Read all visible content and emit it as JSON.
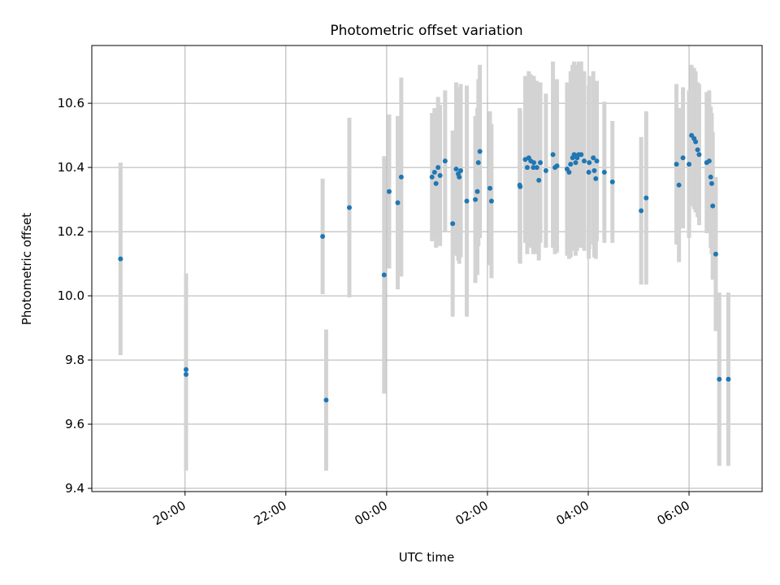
{
  "chart_data": {
    "type": "scatter",
    "title": "Photometric offset variation",
    "xlabel": "UTC time",
    "ylabel": "Photometric offset",
    "x_unit": "hours",
    "xlim": [
      -5.85,
      7.45
    ],
    "ylim": [
      9.39,
      10.78
    ],
    "xticks": [
      {
        "value": -4,
        "label": "20:00"
      },
      {
        "value": -2,
        "label": "22:00"
      },
      {
        "value": 0,
        "label": "00:00"
      },
      {
        "value": 2,
        "label": "02:00"
      },
      {
        "value": 4,
        "label": "04:00"
      },
      {
        "value": 6,
        "label": "06:00"
      }
    ],
    "yticks": [
      9.4,
      9.6,
      9.8,
      10.0,
      10.2,
      10.4,
      10.6
    ],
    "grid": true,
    "marker_color": "#1f77b4",
    "errorbar_color": "#d3d3d3",
    "series": [
      {
        "x_hours_utc": [
          -5.28,
          -3.98,
          -3.98,
          -1.27,
          -1.2,
          -0.74,
          -0.05,
          0.05,
          0.22,
          0.29,
          0.9,
          0.95,
          0.98,
          1.02,
          1.06,
          1.16,
          1.31,
          1.38,
          1.42,
          1.44,
          1.47,
          1.59,
          1.76,
          1.8,
          1.82,
          1.85,
          2.05,
          2.08,
          2.64,
          2.65,
          2.75,
          2.79,
          2.82,
          2.86,
          2.91,
          2.92,
          2.98,
          3.02,
          3.05,
          3.16,
          3.3,
          3.34,
          3.38,
          3.58,
          3.62,
          3.65,
          3.69,
          3.72,
          3.75,
          3.78,
          3.81,
          3.86,
          3.92,
          4.01,
          4.02,
          4.1,
          4.12,
          4.15,
          4.17,
          4.32,
          4.48,
          5.05,
          5.15,
          5.75,
          5.8,
          5.88,
          6.0,
          6.05,
          6.1,
          6.13,
          6.17,
          6.2,
          6.35,
          6.4,
          6.43,
          6.45,
          6.47,
          6.53,
          6.6,
          6.78
        ],
        "y": [
          10.115,
          9.77,
          9.755,
          10.185,
          9.675,
          10.275,
          10.065,
          10.325,
          10.29,
          10.37,
          10.37,
          10.385,
          10.35,
          10.4,
          10.375,
          10.42,
          10.225,
          10.395,
          10.38,
          10.37,
          10.39,
          10.295,
          10.3,
          10.325,
          10.415,
          10.45,
          10.335,
          10.295,
          10.345,
          10.34,
          10.425,
          10.4,
          10.43,
          10.42,
          10.4,
          10.415,
          10.4,
          10.36,
          10.415,
          10.39,
          10.44,
          10.4,
          10.405,
          10.395,
          10.385,
          10.41,
          10.43,
          10.44,
          10.415,
          10.43,
          10.44,
          10.44,
          10.42,
          10.385,
          10.415,
          10.43,
          10.39,
          10.365,
          10.42,
          10.385,
          10.355,
          10.265,
          10.305,
          10.41,
          10.345,
          10.43,
          10.41,
          10.5,
          10.49,
          10.48,
          10.455,
          10.44,
          10.415,
          10.42,
          10.37,
          10.35,
          10.28,
          10.13,
          9.74,
          9.74
        ],
        "err": [
          0.3,
          0.3,
          0.3,
          0.18,
          0.22,
          0.28,
          0.37,
          0.24,
          0.27,
          0.31,
          0.2,
          0.2,
          0.2,
          0.22,
          0.22,
          0.22,
          0.29,
          0.27,
          0.27,
          0.27,
          0.27,
          0.36,
          0.26,
          0.26,
          0.26,
          0.27,
          0.24,
          0.24,
          0.24,
          0.24,
          0.26,
          0.27,
          0.27,
          0.27,
          0.27,
          0.27,
          0.27,
          0.25,
          0.25,
          0.24,
          0.29,
          0.27,
          0.27,
          0.27,
          0.27,
          0.29,
          0.29,
          0.29,
          0.29,
          0.29,
          0.29,
          0.29,
          0.28,
          0.27,
          0.27,
          0.27,
          0.27,
          0.25,
          0.25,
          0.22,
          0.19,
          0.23,
          0.27,
          0.25,
          0.24,
          0.22,
          0.23,
          0.22,
          0.22,
          0.22,
          0.21,
          0.22,
          0.22,
          0.22,
          0.22,
          0.22,
          0.23,
          0.24,
          0.27,
          0.27
        ]
      }
    ]
  }
}
